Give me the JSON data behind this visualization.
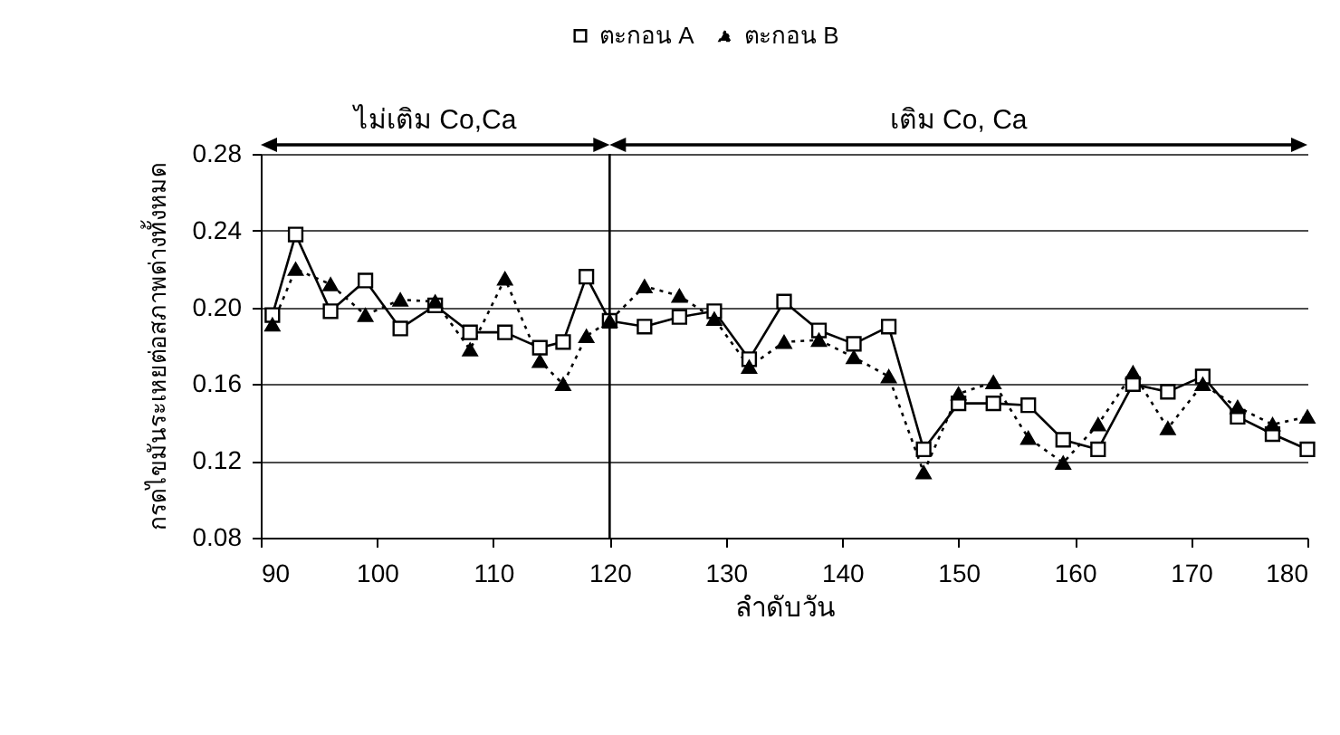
{
  "chart_data": {
    "type": "line",
    "xlabel": "ลำดับวัน",
    "ylabel": "กรดไขมันระเหยต่อสภาพด่างทั้งหมด",
    "xlim": [
      90,
      180
    ],
    "xticks": [
      90,
      100,
      110,
      120,
      130,
      140,
      150,
      160,
      170,
      180
    ],
    "ylim": [
      0.08,
      0.28
    ],
    "yticks": [
      0.08,
      0.12,
      0.16,
      {
        "value": 0.2,
        "label": "0.20"
      },
      0.24,
      0.28
    ],
    "grid": "y",
    "legend": "top",
    "series": [
      {
        "name": "ตะกอน A",
        "color": "#000000",
        "marker": "square",
        "line_style": "solid",
        "x": [
          91,
          93,
          96,
          99,
          102,
          105,
          108,
          111,
          114,
          116,
          118,
          120,
          123,
          126,
          129,
          132,
          135,
          138,
          141,
          144,
          147,
          150,
          153,
          156,
          159,
          162,
          165,
          168,
          171,
          174,
          177,
          180
        ],
        "values": [
          0.196,
          0.238,
          0.198,
          0.214,
          0.189,
          0.201,
          0.187,
          0.187,
          0.179,
          0.182,
          0.216,
          0.193,
          0.19,
          0.195,
          0.198,
          0.173,
          0.203,
          0.188,
          0.181,
          0.19,
          0.126,
          0.15,
          0.15,
          0.149,
          0.131,
          0.126,
          0.16,
          0.156,
          0.164,
          0.143,
          0.134,
          0.126
        ]
      },
      {
        "name": "ตะกอน B",
        "color": "#000000",
        "marker": "triangle",
        "line_style": "dotted",
        "x": [
          91,
          93,
          96,
          99,
          102,
          105,
          108,
          111,
          114,
          116,
          118,
          120,
          123,
          126,
          129,
          132,
          135,
          138,
          141,
          144,
          147,
          150,
          153,
          156,
          159,
          162,
          165,
          168,
          171,
          174,
          177,
          180
        ],
        "values": [
          0.191,
          0.22,
          0.212,
          0.196,
          0.204,
          0.203,
          0.178,
          0.215,
          0.172,
          0.16,
          0.185,
          0.193,
          0.211,
          0.206,
          0.194,
          0.169,
          0.182,
          0.183,
          0.174,
          0.164,
          0.114,
          0.155,
          0.161,
          0.132,
          0.119,
          0.139,
          0.166,
          0.137,
          0.16,
          0.148,
          0.139,
          0.143
        ]
      }
    ],
    "ref_lines": [
      {
        "axis": "x",
        "value": 120,
        "label": null,
        "color": "#000000",
        "line_style": "solid"
      }
    ],
    "annotations": [
      "ไม่เติม Co,Ca",
      "เติม Co, Ca"
    ]
  }
}
